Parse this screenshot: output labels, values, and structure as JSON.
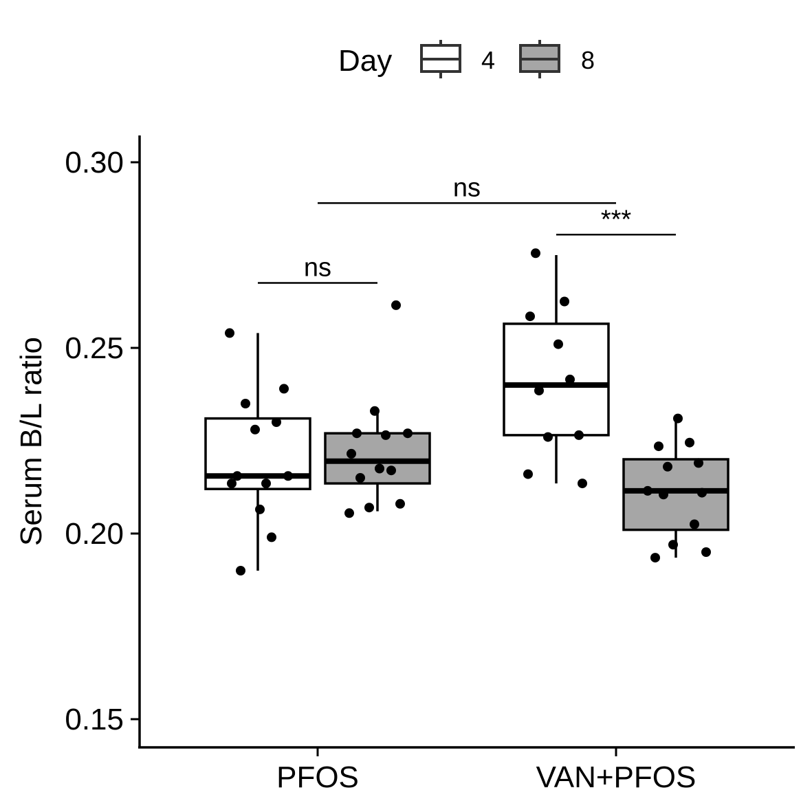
{
  "chart_data": {
    "type": "box",
    "ylabel": "Serum B/L ratio",
    "xlabel": "",
    "ylim": [
      0.145,
      0.307
    ],
    "yticks": [
      0.15,
      0.2,
      0.25,
      0.3
    ],
    "ytick_labels": [
      "0.15",
      "0.20",
      "0.25",
      "0.30"
    ],
    "categories": [
      "PFOS",
      "VAN+PFOS"
    ],
    "legend": {
      "title": "Day",
      "placement": "top",
      "entries": [
        {
          "label": "4",
          "fill": "#ffffff"
        },
        {
          "label": "8",
          "fill": "#a6a6a6"
        }
      ]
    },
    "boxes": [
      {
        "category": "PFOS",
        "day": "4",
        "fill": "#ffffff",
        "whisker_low": 0.19,
        "q1": 0.212,
        "median": 0.2155,
        "q3": 0.231,
        "whisker_high": 0.254,
        "points": [
          0.254,
          0.239,
          0.235,
          0.23,
          0.228,
          0.2155,
          0.2155,
          0.2135,
          0.2135,
          0.2065,
          0.199,
          0.19
        ]
      },
      {
        "category": "PFOS",
        "day": "8",
        "fill": "#a6a6a6",
        "whisker_low": 0.206,
        "q1": 0.2135,
        "median": 0.2195,
        "q3": 0.227,
        "whisker_high": 0.2325,
        "points": [
          0.2615,
          0.233,
          0.227,
          0.227,
          0.2265,
          0.2215,
          0.2175,
          0.217,
          0.215,
          0.208,
          0.207,
          0.2055
        ]
      },
      {
        "category": "VAN+PFOS",
        "day": "4",
        "fill": "#ffffff",
        "whisker_low": 0.2135,
        "q1": 0.2265,
        "median": 0.24,
        "q3": 0.2565,
        "whisker_high": 0.275,
        "points": [
          0.2755,
          0.2625,
          0.2585,
          0.251,
          0.2415,
          0.2385,
          0.2265,
          0.226,
          0.216,
          0.2135
        ]
      },
      {
        "category": "VAN+PFOS",
        "day": "8",
        "fill": "#a6a6a6",
        "whisker_low": 0.1935,
        "q1": 0.201,
        "median": 0.2115,
        "q3": 0.22,
        "whisker_high": 0.2305,
        "points": [
          0.231,
          0.2245,
          0.2235,
          0.219,
          0.218,
          0.2115,
          0.211,
          0.2105,
          0.2025,
          0.197,
          0.195,
          0.1935
        ]
      }
    ],
    "significance": [
      {
        "label": "ns",
        "from": {
          "category": "PFOS",
          "day": "4"
        },
        "to": {
          "category": "PFOS",
          "day": "8"
        },
        "y": 0.2675
      },
      {
        "label": "ns",
        "from": {
          "category": "PFOS"
        },
        "to": {
          "category": "VAN+PFOS"
        },
        "y": 0.289
      },
      {
        "label": "***",
        "from": {
          "category": "VAN+PFOS",
          "day": "4"
        },
        "to": {
          "category": "VAN+PFOS",
          "day": "8"
        },
        "y": 0.2805
      }
    ]
  }
}
